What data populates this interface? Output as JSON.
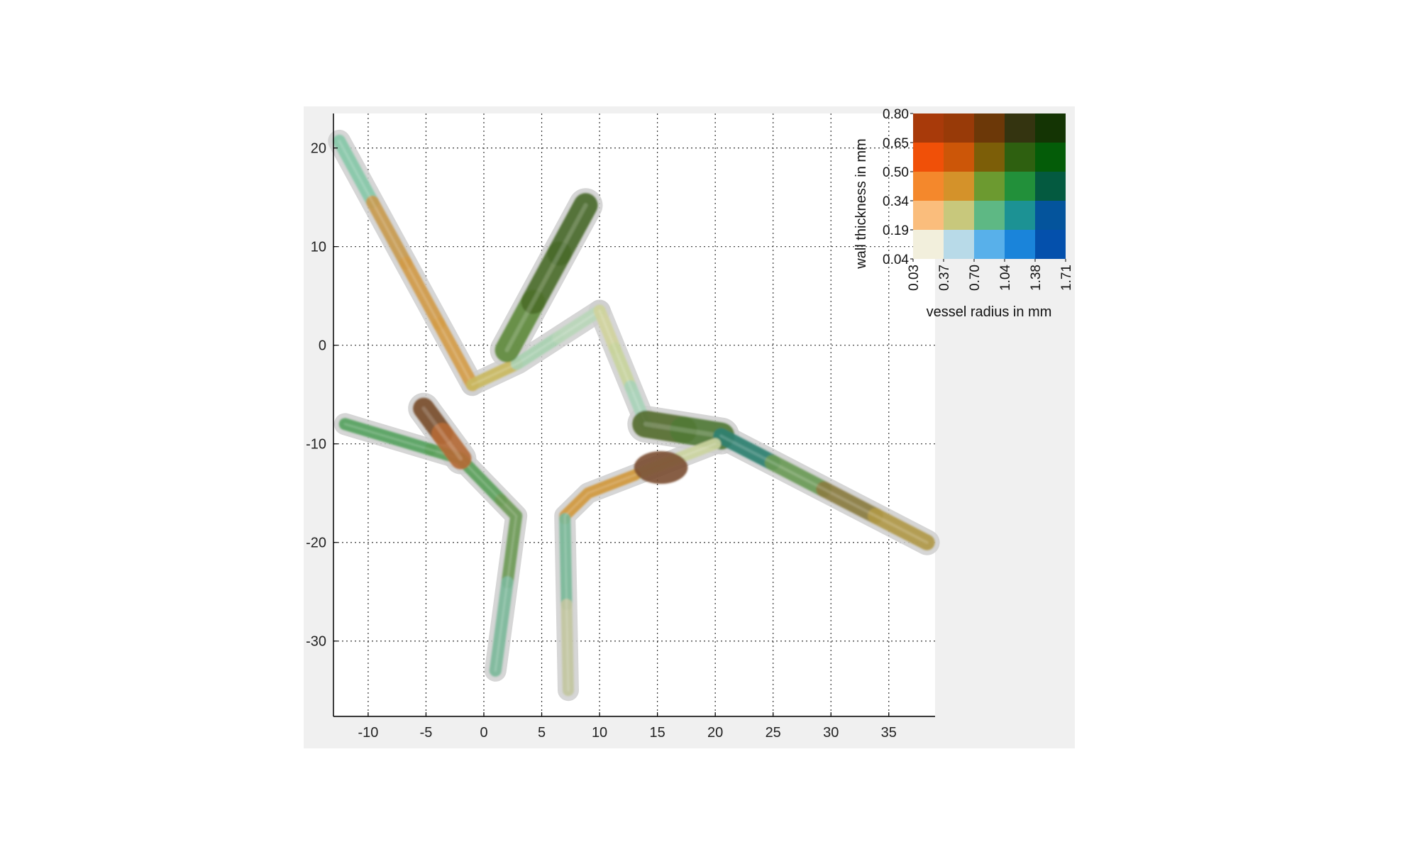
{
  "chart_data": {
    "type": "vessel-tree-3d-render",
    "title": "",
    "xlabel": "",
    "ylabel": "",
    "xlim": [
      -13,
      39
    ],
    "ylim": [
      -37.5,
      23.5
    ],
    "xticks": [
      -10,
      -5,
      0,
      5,
      10,
      15,
      20,
      25,
      30,
      35
    ],
    "yticks": [
      20,
      10,
      0,
      -10,
      -20,
      -30
    ],
    "grid": true,
    "vessels": [
      {
        "points": [
          [
            -12.5,
            20.7
          ],
          [
            -1,
            -4
          ]
        ],
        "colors": [
          "#86c8a8",
          "#c89a4e",
          "#d09a48",
          "#d49c48"
        ],
        "width": 18
      },
      {
        "points": [
          [
            -1,
            -4
          ],
          [
            3,
            -1.8
          ],
          [
            10,
            3.5
          ]
        ],
        "colors": [
          "#c9b860",
          "#a8d0b0",
          "#b8d6b8"
        ],
        "width": 17
      },
      {
        "points": [
          [
            2,
            -0.5
          ],
          [
            8.8,
            14.2
          ]
        ],
        "colors": [
          "#5e8a3e",
          "#4c6e2a",
          "#4a6a2c"
        ],
        "width": 34
      },
      {
        "points": [
          [
            10,
            3.5
          ],
          [
            14,
            -8
          ]
        ],
        "colors": [
          "#d0d29c",
          "#c8d49c",
          "#a8d2b8"
        ],
        "width": 17
      },
      {
        "points": [
          [
            14,
            -8
          ],
          [
            20.5,
            -9.2
          ]
        ],
        "colors": [
          "#566e32",
          "#507a36"
        ],
        "width": 38
      },
      {
        "points": [
          [
            20.5,
            -9.2
          ],
          [
            38.3,
            -20
          ]
        ],
        "colors": [
          "#2e8070",
          "#6a9a56",
          "#8a7c40",
          "#b09846"
        ],
        "width": 22
      },
      {
        "points": [
          [
            20,
            -10
          ],
          [
            9,
            -15
          ],
          [
            7,
            -17.3
          ],
          [
            7.3,
            -35
          ]
        ],
        "colors": [
          "#cbd4a0",
          "#d0983e",
          "#7ab898",
          "#c2c6a0"
        ],
        "width": 16
      },
      {
        "points": [
          [
            -12,
            -8
          ],
          [
            -2,
            -11.5
          ],
          [
            2.8,
            -17.3
          ],
          [
            1,
            -33
          ]
        ],
        "colors": [
          "#56a260",
          "#5aa05a",
          "#6c9a56",
          "#7cb89a"
        ],
        "width": 17
      },
      {
        "points": [
          [
            -5.2,
            -6.4
          ],
          [
            -2,
            -11.5
          ]
        ],
        "colors": [
          "#7a4e2e",
          "#b46a36"
        ],
        "width": 30
      },
      {
        "points": [
          [
            15.3,
            -12.4
          ]
        ],
        "colors": [
          "#7a4e30"
        ],
        "width": 42
      }
    ],
    "legend": {
      "position": "top-right",
      "xlabel": "vessel radius in mm",
      "ylabel": "wall thickness in mm",
      "xticks": [
        "0.03",
        "0.37",
        "0.70",
        "1.04",
        "1.38",
        "1.71"
      ],
      "yticks": [
        "0.80",
        "0.65",
        "0.50",
        "0.34",
        "0.19",
        "0.04"
      ],
      "grid_colors": [
        [
          "#a83a0a",
          "#983a08",
          "#6c3808",
          "#343410",
          "#143404"
        ],
        [
          "#f05008",
          "#cc5608",
          "#7c5e08",
          "#2e6010",
          "#045c08"
        ],
        [
          "#f4882c",
          "#d4922a",
          "#6c9a30",
          "#22903a",
          "#045a40"
        ],
        [
          "#fabd7c",
          "#c8c87c",
          "#5eb884",
          "#1c9294",
          "#04549c"
        ],
        [
          "#f2efdc",
          "#b8dae8",
          "#58b0ea",
          "#1a84da",
          "#0450ac"
        ]
      ]
    }
  }
}
